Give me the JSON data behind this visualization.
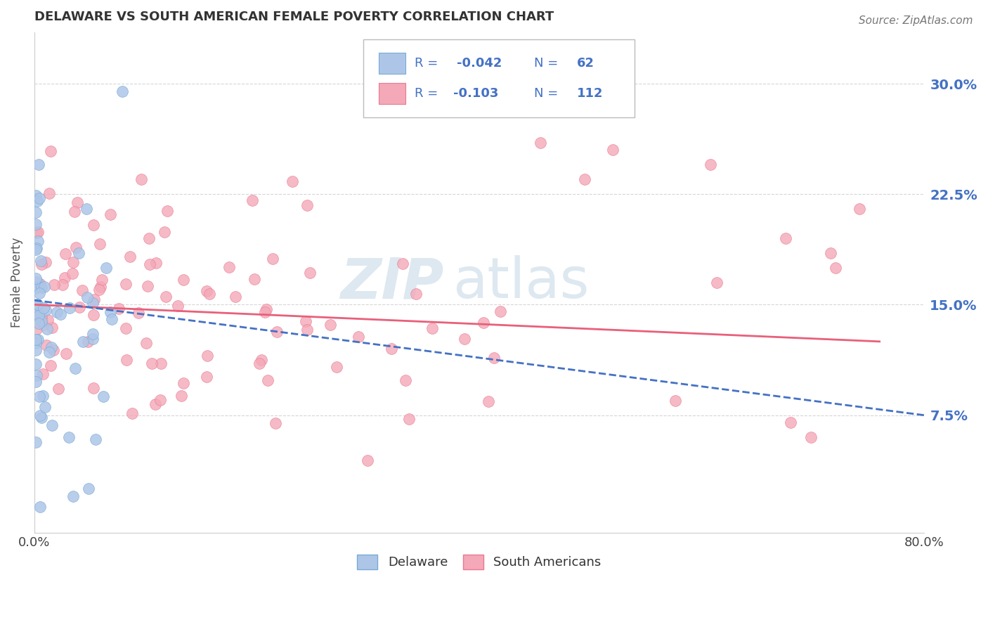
{
  "title": "DELAWARE VS SOUTH AMERICAN FEMALE POVERTY CORRELATION CHART",
  "source": "Source: ZipAtlas.com",
  "ylabel": "Female Poverty",
  "yticks_labels": [
    "7.5%",
    "15.0%",
    "22.5%",
    "30.0%"
  ],
  "ytick_values": [
    0.075,
    0.15,
    0.225,
    0.3
  ],
  "xlim": [
    0.0,
    0.8
  ],
  "ylim": [
    -0.005,
    0.335
  ],
  "R_delaware": -0.042,
  "N_delaware": 62,
  "R_south": -0.103,
  "N_south": 112,
  "color_delaware": "#adc6e8",
  "color_south": "#f4a8b8",
  "color_delaware_edge": "#7aaad4",
  "color_south_edge": "#e87a90",
  "color_de_line": "#4472c4",
  "color_sa_line": "#e8607a",
  "ytick_color": "#4472c4",
  "legend_color": "#4472c4",
  "title_color": "#333333",
  "grid_color": "#cccccc",
  "watermark_zip": "ZIP",
  "watermark_atlas": "atlas"
}
